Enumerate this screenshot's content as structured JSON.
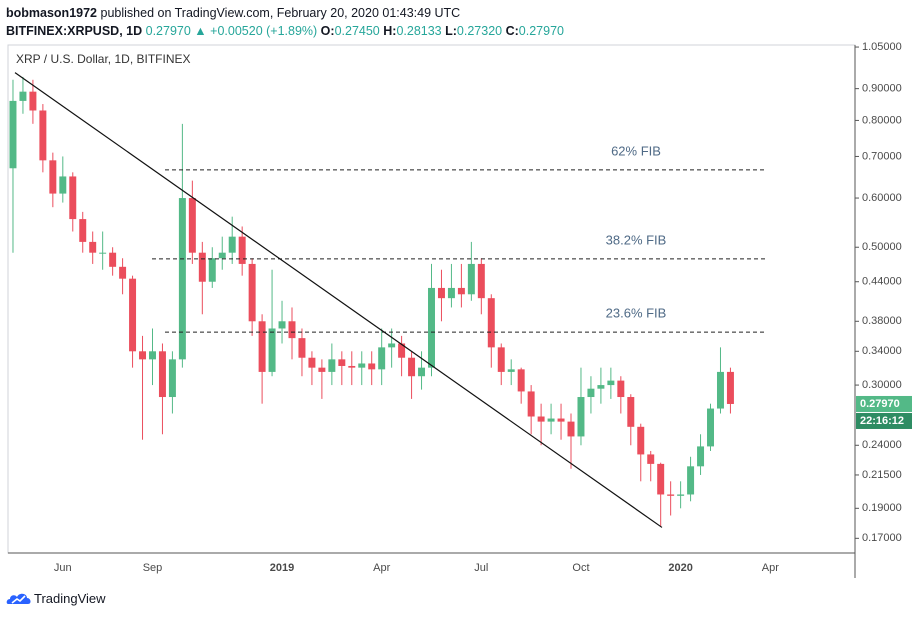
{
  "header": {
    "author": "bobmason1972",
    "published": "published on TradingView.com, February 20, 2020 01:43:49 UTC",
    "symbol": "BITFINEX:XRPUSD, 1D",
    "last": "0.27970",
    "change": "+0.00520 (+1.89%)",
    "ohlc": [
      {
        "label": "O:",
        "value": "0.27450"
      },
      {
        "label": "H:",
        "value": "0.28133"
      },
      {
        "label": "L:",
        "value": "0.27320"
      },
      {
        "label": "C:",
        "value": "0.27970"
      }
    ]
  },
  "chart_data": {
    "type": "candlestick",
    "title": "XRP / U.S. Dollar, 1D, BITFINEX",
    "log_scale": true,
    "grid": false,
    "up_color": "#53b987",
    "down_color": "#eb4d5c",
    "categories": [
      null,
      null,
      null,
      null,
      null,
      "Jun",
      null,
      null,
      null,
      null,
      null,
      null,
      null,
      null,
      "Sep",
      null,
      null,
      null,
      null,
      null,
      null,
      null,
      null,
      null,
      null,
      null,
      null,
      "2019",
      null,
      null,
      null,
      null,
      null,
      null,
      null,
      null,
      null,
      "Apr",
      null,
      null,
      null,
      null,
      null,
      null,
      null,
      null,
      null,
      "Jul",
      null,
      null,
      null,
      null,
      null,
      null,
      null,
      null,
      null,
      "Oct",
      null,
      null,
      null,
      null,
      null,
      null,
      null,
      null,
      null,
      "2020",
      null,
      null,
      null,
      null,
      null,
      null,
      null,
      null,
      "Apr",
      null,
      null,
      null,
      null,
      null,
      null,
      null,
      null
    ],
    "open": [
      0.67,
      0.86,
      0.89,
      0.83,
      0.69,
      0.61,
      0.65,
      0.555,
      0.51,
      0.49,
      0.49,
      0.465,
      0.445,
      0.34,
      0.33,
      0.34,
      0.287,
      0.33,
      0.6,
      0.49,
      0.44,
      0.48,
      0.49,
      0.52,
      0.47,
      0.38,
      0.315,
      0.37,
      0.38,
      0.357,
      0.332,
      0.32,
      0.315,
      0.33,
      0.322,
      0.32,
      0.325,
      0.318,
      0.345,
      0.35,
      0.332,
      0.31,
      0.32,
      0.43,
      0.414,
      0.43,
      0.42,
      0.47,
      0.414,
      0.345,
      0.315,
      0.318,
      0.293,
      0.267,
      0.262,
      0.265,
      0.262,
      0.248,
      0.287,
      0.296,
      0.3,
      0.305,
      0.287,
      0.257,
      0.232,
      0.224,
      0.2,
      0.199,
      0.2,
      0.222,
      0.239,
      0.275,
      0.315,
      null,
      null,
      null,
      null,
      null,
      null,
      null,
      null,
      null,
      null,
      null,
      null
    ],
    "high": [
      0.93,
      0.94,
      0.93,
      0.85,
      0.71,
      0.7,
      0.66,
      0.57,
      0.53,
      0.53,
      0.5,
      0.48,
      0.45,
      0.36,
      0.37,
      0.35,
      0.34,
      0.79,
      0.64,
      0.51,
      0.5,
      0.52,
      0.56,
      0.54,
      0.48,
      0.39,
      0.46,
      0.41,
      0.4,
      0.37,
      0.34,
      0.33,
      0.35,
      0.34,
      0.34,
      0.34,
      0.34,
      0.37,
      0.37,
      0.36,
      0.34,
      0.34,
      0.47,
      0.46,
      0.47,
      0.47,
      0.51,
      0.48,
      0.42,
      0.35,
      0.33,
      0.32,
      0.3,
      0.28,
      0.28,
      0.28,
      0.27,
      0.32,
      0.31,
      0.32,
      0.32,
      0.31,
      0.29,
      0.26,
      0.235,
      0.225,
      0.21,
      0.21,
      0.23,
      0.25,
      0.28,
      0.345,
      0.32,
      null,
      null,
      null,
      null,
      null,
      null,
      null,
      null,
      null,
      null,
      null,
      null
    ],
    "low": [
      0.49,
      0.82,
      0.79,
      0.66,
      0.58,
      0.59,
      0.53,
      0.49,
      0.47,
      0.46,
      0.45,
      0.42,
      0.32,
      0.245,
      0.3,
      0.25,
      0.27,
      0.32,
      0.47,
      0.39,
      0.43,
      0.46,
      0.47,
      0.45,
      0.36,
      0.28,
      0.31,
      0.35,
      0.33,
      0.31,
      0.3,
      0.285,
      0.3,
      0.3,
      0.3,
      0.3,
      0.3,
      0.3,
      0.32,
      0.31,
      0.285,
      0.295,
      0.31,
      0.38,
      0.4,
      0.4,
      0.41,
      0.39,
      0.32,
      0.3,
      0.3,
      0.28,
      0.25,
      0.24,
      0.25,
      0.245,
      0.22,
      0.24,
      0.27,
      0.28,
      0.285,
      0.27,
      0.24,
      0.21,
      0.21,
      0.178,
      0.185,
      0.19,
      0.195,
      0.215,
      0.235,
      0.27,
      0.27,
      null,
      null,
      null,
      null,
      null,
      null,
      null,
      null,
      null,
      null,
      null,
      null
    ],
    "close": [
      0.86,
      0.89,
      0.83,
      0.69,
      0.61,
      0.65,
      0.555,
      0.51,
      0.49,
      0.49,
      0.465,
      0.445,
      0.34,
      0.33,
      0.34,
      0.287,
      0.33,
      0.6,
      0.49,
      0.44,
      0.48,
      0.49,
      0.52,
      0.47,
      0.38,
      0.315,
      0.37,
      0.38,
      0.357,
      0.332,
      0.32,
      0.315,
      0.33,
      0.322,
      0.32,
      0.325,
      0.318,
      0.345,
      0.35,
      0.332,
      0.31,
      0.32,
      0.43,
      0.414,
      0.43,
      0.42,
      0.47,
      0.414,
      0.345,
      0.315,
      0.318,
      0.293,
      0.267,
      0.262,
      0.265,
      0.262,
      0.248,
      0.287,
      0.296,
      0.3,
      0.305,
      0.287,
      0.257,
      0.232,
      0.224,
      0.2,
      0.199,
      0.2,
      0.222,
      0.239,
      0.275,
      0.315,
      0.2797,
      null,
      null,
      null,
      null,
      null,
      null,
      null,
      null,
      null,
      null,
      null,
      null
    ],
    "ylim": [
      0.161,
      1.058
    ],
    "yticks": [
      {
        "value": 1.05,
        "label": "1.05000"
      },
      {
        "value": 0.9,
        "label": "0.90000"
      },
      {
        "value": 0.8,
        "label": "0.80000"
      },
      {
        "value": 0.7,
        "label": "0.70000"
      },
      {
        "value": 0.6,
        "label": "0.60000"
      },
      {
        "value": 0.5,
        "label": "0.50000"
      },
      {
        "value": 0.44,
        "label": "0.44000"
      },
      {
        "value": 0.38,
        "label": "0.38000"
      },
      {
        "value": 0.34,
        "label": "0.34000"
      },
      {
        "value": 0.3,
        "label": "0.30000"
      },
      {
        "value": 0.24,
        "label": "0.24000"
      },
      {
        "value": 0.215,
        "label": "0.21500"
      },
      {
        "value": 0.19,
        "label": "0.19000"
      },
      {
        "value": 0.17,
        "label": "0.17000"
      }
    ],
    "last_price": {
      "value": 0.2797,
      "label": "0.27970"
    },
    "countdown": "22:16:12",
    "fib_levels": [
      {
        "label": "62% FIB",
        "value": 0.666
      },
      {
        "label": "38.2% FIB",
        "value": 0.479
      },
      {
        "label": "23.6% FIB",
        "value": 0.365
      }
    ],
    "trendline": [
      0.955,
      0.177
    ]
  },
  "footer": {
    "brand": "TradingView"
  }
}
